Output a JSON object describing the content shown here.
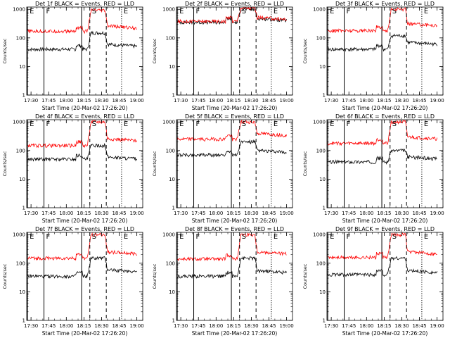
{
  "page": {
    "background": "#ffffff",
    "line_events_color": "#000000",
    "line_lld_color": "#ff0000"
  },
  "shared": {
    "xlabel": "Start Time (20-Mar-02 17:26:20)",
    "ylabel": "Counts/sec",
    "x_ticks": [
      "17:30",
      "17:45",
      "18:00",
      "18:15",
      "18:30",
      "18:45",
      "19:00"
    ],
    "y_ticks": [
      "1",
      "10",
      "100",
      "1000"
    ],
    "xlim": [
      "17:26:20",
      "19:05"
    ],
    "ylim": [
      1,
      1200
    ],
    "y_scale": "log",
    "markers": [
      {
        "label": "E",
        "time": "17:27",
        "style": "solid"
      },
      {
        "label": "F",
        "time": "17:41",
        "style": "solid"
      },
      {
        "label": "",
        "time": "18:13",
        "style": "solid"
      },
      {
        "label": "S",
        "time": "18:20",
        "style": "dashed"
      },
      {
        "label": "",
        "time": "18:34",
        "style": "dashed"
      },
      {
        "label": "E",
        "time": "18:47",
        "style": "dotted"
      }
    ]
  },
  "chart_data": [
    {
      "type": "line",
      "title": "Det 1f BLACK = Events, RED = LLD",
      "series": [
        {
          "name": "Events",
          "base": 40,
          "peak": 150,
          "after": 60
        },
        {
          "name": "LLD",
          "base": 170,
          "peak": 900,
          "after": 260
        }
      ]
    },
    {
      "type": "line",
      "title": "Det 2f BLACK = Events, RED = LLD",
      "series": [
        {
          "name": "Events",
          "base": 350,
          "peak": 1000,
          "after": 480
        },
        {
          "name": "LLD",
          "base": 380,
          "peak": 1100,
          "after": 520
        }
      ]
    },
    {
      "type": "line",
      "title": "Det 3f BLACK = Events, RED = LLD",
      "series": [
        {
          "name": "Events",
          "base": 40,
          "peak": 120,
          "after": 70
        },
        {
          "name": "LLD",
          "base": 180,
          "peak": 1000,
          "after": 320
        }
      ]
    },
    {
      "type": "line",
      "title": "Det 4f BLACK = Events, RED = LLD",
      "series": [
        {
          "name": "Events",
          "base": 50,
          "peak": 150,
          "after": 60
        },
        {
          "name": "LLD",
          "base": 150,
          "peak": 1000,
          "after": 260
        }
      ]
    },
    {
      "type": "line",
      "title": "Det 5f BLACK = Events, RED = LLD",
      "series": [
        {
          "name": "Events",
          "base": 70,
          "peak": 200,
          "after": 100
        },
        {
          "name": "LLD",
          "base": 250,
          "peak": 1000,
          "after": 400
        }
      ]
    },
    {
      "type": "line",
      "title": "Det 6f BLACK = Events, RED = LLD",
      "series": [
        {
          "name": "Events",
          "base": 40,
          "peak": 100,
          "after": 60
        },
        {
          "name": "LLD",
          "base": 180,
          "peak": 1000,
          "after": 300
        }
      ]
    },
    {
      "type": "line",
      "title": "Det 7f BLACK = Events, RED = LLD",
      "series": [
        {
          "name": "Events",
          "base": 35,
          "peak": 150,
          "after": 60
        },
        {
          "name": "LLD",
          "base": 150,
          "peak": 1000,
          "after": 250
        }
      ]
    },
    {
      "type": "line",
      "title": "Det 8f BLACK = Events, RED = LLD",
      "series": [
        {
          "name": "Events",
          "base": 35,
          "peak": 150,
          "after": 55
        },
        {
          "name": "LLD",
          "base": 140,
          "peak": 1000,
          "after": 250
        }
      ]
    },
    {
      "type": "line",
      "title": "Det 9f BLACK = Events, RED = LLD",
      "series": [
        {
          "name": "Events",
          "base": 40,
          "peak": 150,
          "after": 55
        },
        {
          "name": "LLD",
          "base": 160,
          "peak": 1000,
          "after": 250
        }
      ]
    }
  ]
}
